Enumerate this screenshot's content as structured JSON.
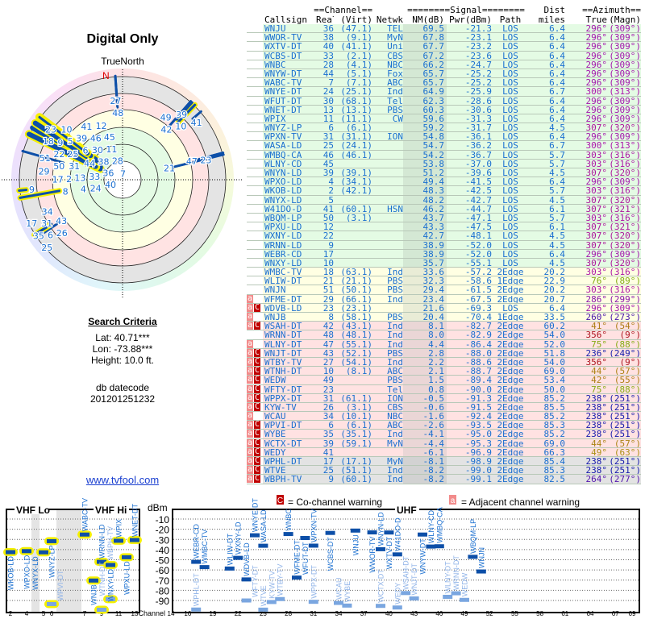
{
  "polar": {
    "title": "Digital Only",
    "north_label": "TrueNorth",
    "n_marker": "N"
  },
  "criteria": {
    "heading": "Search Criteria",
    "lat": "Lat: 40.71***",
    "lon": "Lon: -73.88***",
    "height": "Height: 10.0 ft.",
    "datecode_label": "db datecode",
    "datecode": "201201251232"
  },
  "link": "www.tvfool.com",
  "table_header": {
    "channel_group": "==Channel==",
    "signal_group": "========Signal========",
    "dist_top": "Dist",
    "azimuth_group": "==Azimuth==",
    "callsign": "Callsign",
    "real": "Real",
    "virt": "(Virt)",
    "netwk": "Netwk",
    "nm": "NM(dB)",
    "pwr": "Pwr(dBm)",
    "path": "Path",
    "dist": "miles",
    "true": "True",
    "magn": "(Magn)"
  },
  "stations": [
    {
      "f": "",
      "cs": "WNJU",
      "ch": "36",
      "v": "(47.1)",
      "net": "TEL",
      "nm": "69.5",
      "pwr": "-21.3",
      "path": "LOS",
      "dist": "6.4",
      "az": "296°",
      "mag": "(309°)",
      "zone": "green"
    },
    {
      "f": "",
      "cs": "WWOR-TV",
      "ch": "38",
      "v": "(9.1)",
      "net": "MyN",
      "nm": "67.8",
      "pwr": "-23.1",
      "path": "LOS",
      "dist": "6.4",
      "az": "296°",
      "mag": "(309°)",
      "zone": "green"
    },
    {
      "f": "",
      "cs": "WXTV-DT",
      "ch": "40",
      "v": "(41.1)",
      "net": "Uni",
      "nm": "67.7",
      "pwr": "-23.2",
      "path": "LOS",
      "dist": "6.4",
      "az": "296°",
      "mag": "(309°)",
      "zone": "green"
    },
    {
      "f": "",
      "cs": "WCBS-DT",
      "ch": "33",
      "v": "(2.1)",
      "net": "CBS",
      "nm": "67.2",
      "pwr": "-23.6",
      "path": "LOS",
      "dist": "6.4",
      "az": "296°",
      "mag": "(309°)",
      "zone": "green"
    },
    {
      "f": "",
      "cs": "WNBC",
      "ch": "28",
      "v": "(4.1)",
      "net": "NBC",
      "nm": "66.2",
      "pwr": "-24.7",
      "path": "LOS",
      "dist": "6.4",
      "az": "296°",
      "mag": "(309°)",
      "zone": "green"
    },
    {
      "f": "",
      "cs": "WNYW-DT",
      "ch": "44",
      "v": "(5.1)",
      "net": "Fox",
      "nm": "65.7",
      "pwr": "-25.2",
      "path": "LOS",
      "dist": "6.4",
      "az": "296°",
      "mag": "(309°)",
      "zone": "green"
    },
    {
      "f": "",
      "cs": "WABC-TV",
      "ch": "7",
      "v": "(7.1)",
      "net": "ABC",
      "nm": "65.7",
      "pwr": "-25.2",
      "path": "LOS",
      "dist": "6.4",
      "az": "296°",
      "mag": "(309°)",
      "zone": "green"
    },
    {
      "f": "",
      "cs": "WNYE-DT",
      "ch": "24",
      "v": "(25.1)",
      "net": "Ind",
      "nm": "64.9",
      "pwr": "-25.9",
      "path": "LOS",
      "dist": "6.7",
      "az": "300°",
      "mag": "(313°)",
      "zone": "green"
    },
    {
      "f": "",
      "cs": "WFUT-DT",
      "ch": "30",
      "v": "(68.1)",
      "net": "Tel",
      "nm": "62.3",
      "pwr": "-28.6",
      "path": "LOS",
      "dist": "6.4",
      "az": "296°",
      "mag": "(309°)",
      "zone": "green"
    },
    {
      "f": "",
      "cs": "WNET-DT",
      "ch": "13",
      "v": "(13.1)",
      "net": "PBS",
      "nm": "60.3",
      "pwr": "-30.6",
      "path": "LOS",
      "dist": "6.4",
      "az": "296°",
      "mag": "(309°)",
      "zone": "green"
    },
    {
      "f": "",
      "cs": "WPIX",
      "ch": "11",
      "v": "(11.1)",
      "net": "CW",
      "nm": "59.6",
      "pwr": "-31.3",
      "path": "LOS",
      "dist": "6.4",
      "az": "296°",
      "mag": "(309°)",
      "zone": "green"
    },
    {
      "f": "",
      "cs": "WNYZ-LP",
      "ch": "6",
      "v": "(6.1)",
      "net": "",
      "nm": "59.2",
      "pwr": "-31.7",
      "path": "LOS",
      "dist": "4.5",
      "az": "307°",
      "mag": "(320°)",
      "zone": "green"
    },
    {
      "f": "",
      "cs": "WPXN-TV",
      "ch": "31",
      "v": "(31.1)",
      "net": "ION",
      "nm": "54.8",
      "pwr": "-36.1",
      "path": "LOS",
      "dist": "6.4",
      "az": "296°",
      "mag": "(309°)",
      "zone": "green"
    },
    {
      "f": "",
      "cs": "WASA-LD",
      "ch": "25",
      "v": "(24.1)",
      "net": "",
      "nm": "54.7",
      "pwr": "-36.2",
      "path": "LOS",
      "dist": "6.7",
      "az": "300°",
      "mag": "(313°)",
      "zone": "green"
    },
    {
      "f": "",
      "cs": "WMBQ-CA",
      "ch": "46",
      "v": "(46.1)",
      "net": "",
      "nm": "54.2",
      "pwr": "-36.7",
      "path": "LOS",
      "dist": "5.7",
      "az": "303°",
      "mag": "(316°)",
      "zone": "green"
    },
    {
      "f": "",
      "cs": "WLNY-CD",
      "ch": "45",
      "v": "",
      "net": "",
      "nm": "53.8",
      "pwr": "-37.0",
      "path": "LOS",
      "dist": "5.7",
      "az": "303°",
      "mag": "(316°)",
      "zone": "green"
    },
    {
      "f": "",
      "cs": "WNYN-LD",
      "ch": "39",
      "v": "(39.1)",
      "net": "",
      "nm": "51.2",
      "pwr": "-39.6",
      "path": "LOS",
      "dist": "4.5",
      "az": "307°",
      "mag": "(320°)",
      "zone": "green"
    },
    {
      "f": "",
      "cs": "WPXO-LD",
      "ch": "4",
      "v": "(34.1)",
      "net": "",
      "nm": "49.4",
      "pwr": "-41.5",
      "path": "LOS",
      "dist": "6.4",
      "az": "296°",
      "mag": "(309°)",
      "zone": "green"
    },
    {
      "f": "",
      "cs": "WKOB-LD",
      "ch": "2",
      "v": "(42.1)",
      "net": "",
      "nm": "48.3",
      "pwr": "-42.5",
      "path": "LOS",
      "dist": "5.7",
      "az": "303°",
      "mag": "(316°)",
      "zone": "green"
    },
    {
      "f": "",
      "cs": "WNYX-LD",
      "ch": "5",
      "v": "",
      "net": "",
      "nm": "48.2",
      "pwr": "-42.7",
      "path": "LOS",
      "dist": "4.5",
      "az": "307°",
      "mag": "(320°)",
      "zone": "green"
    },
    {
      "f": "",
      "cs": "W41DO-D",
      "ch": "41",
      "v": "(60.1)",
      "net": "HSN",
      "nm": "46.2",
      "pwr": "-44.7",
      "path": "LOS",
      "dist": "6.1",
      "az": "307°",
      "mag": "(321°)",
      "zone": "green"
    },
    {
      "f": "",
      "cs": "WBQM-LP",
      "ch": "50",
      "v": "(3.1)",
      "net": "",
      "nm": "43.7",
      "pwr": "-47.1",
      "path": "LOS",
      "dist": "5.7",
      "az": "303°",
      "mag": "(316°)",
      "zone": "green"
    },
    {
      "f": "",
      "cs": "WPXU-LD",
      "ch": "12",
      "v": "",
      "net": "",
      "nm": "43.3",
      "pwr": "-47.5",
      "path": "LOS",
      "dist": "6.1",
      "az": "307°",
      "mag": "(321°)",
      "zone": "green"
    },
    {
      "f": "",
      "cs": "WXNY-LD",
      "ch": "22",
      "v": "",
      "net": "",
      "nm": "42.7",
      "pwr": "-48.1",
      "path": "LOS",
      "dist": "4.5",
      "az": "307°",
      "mag": "(320°)",
      "zone": "green"
    },
    {
      "f": "",
      "cs": "WRNN-LD",
      "ch": "9",
      "v": "",
      "net": "",
      "nm": "38.9",
      "pwr": "-52.0",
      "path": "LOS",
      "dist": "4.5",
      "az": "307°",
      "mag": "(320°)",
      "zone": "green"
    },
    {
      "f": "",
      "cs": "WEBR-CD",
      "ch": "17",
      "v": "",
      "net": "",
      "nm": "38.9",
      "pwr": "-52.0",
      "path": "LOS",
      "dist": "6.4",
      "az": "296°",
      "mag": "(309°)",
      "zone": "green"
    },
    {
      "f": "",
      "cs": "WNXY-LD",
      "ch": "10",
      "v": "",
      "net": "",
      "nm": "35.7",
      "pwr": "-55.1",
      "path": "LOS",
      "dist": "4.5",
      "az": "307°",
      "mag": "(320°)",
      "zone": "green"
    },
    {
      "f": "",
      "cs": "WMBC-TV",
      "ch": "18",
      "v": "(63.1)",
      "net": "Ind",
      "nm": "33.6",
      "pwr": "-57.2",
      "path": "2Edge",
      "dist": "20.2",
      "az": "303°",
      "mag": "(316°)",
      "zone": "yellow"
    },
    {
      "f": "",
      "cs": "WLIW-DT",
      "ch": "21",
      "v": "(21.1)",
      "net": "PBS",
      "nm": "32.3",
      "pwr": "-58.6",
      "path": "1Edge",
      "dist": "22.9",
      "az": "76°",
      "mag": "(89°)",
      "zone": "yellow"
    },
    {
      "f": "",
      "cs": "WNJN",
      "ch": "51",
      "v": "(50.1)",
      "net": "PBS",
      "nm": "29.4",
      "pwr": "-61.5",
      "path": "2Edge",
      "dist": "20.2",
      "az": "303°",
      "mag": "(316°)",
      "zone": "yellow"
    },
    {
      "f": "a",
      "cs": "WFME-DT",
      "ch": "29",
      "v": "(66.1)",
      "net": "Ind",
      "nm": "23.4",
      "pwr": "-67.5",
      "path": "2Edge",
      "dist": "20.7",
      "az": "286°",
      "mag": "(299°)",
      "zone": "yellow"
    },
    {
      "f": "aC",
      "cs": "WDVB-LD",
      "ch": "23",
      "v": "(23.1)",
      "net": "",
      "nm": "21.6",
      "pwr": "-69.3",
      "path": "LOS",
      "dist": "6.4",
      "az": "296°",
      "mag": "(309°)",
      "zone": "yellow"
    },
    {
      "f": "a",
      "cs": "WNJB",
      "ch": "8",
      "v": "(58.1)",
      "net": "PBS",
      "nm": "20.4",
      "pwr": "-70.4",
      "path": "1Edge",
      "dist": "33.5",
      "az": "260°",
      "mag": "(273°)",
      "zone": "yellow"
    },
    {
      "f": "aC",
      "cs": "WSAH-DT",
      "ch": "42",
      "v": "(43.1)",
      "net": "Ind",
      "nm": "8.1",
      "pwr": "-82.7",
      "path": "2Edge",
      "dist": "60.2",
      "az": "41°",
      "mag": "(54°)",
      "zone": "pink"
    },
    {
      "f": "",
      "cs": "WRNN-DT",
      "ch": "48",
      "v": "(48.1)",
      "net": "Ind",
      "nm": "8.0",
      "pwr": "-82.9",
      "path": "2Edge",
      "dist": "54.0",
      "az": "356°",
      "mag": "(9°)",
      "zone": "pink"
    },
    {
      "f": "a",
      "cs": "WLNY-DT",
      "ch": "47",
      "v": "(55.1)",
      "net": "Ind",
      "nm": "4.4",
      "pwr": "-86.4",
      "path": "2Edge",
      "dist": "52.0",
      "az": "75°",
      "mag": "(88°)",
      "zone": "pink"
    },
    {
      "f": "aC",
      "cs": "WNJT-DT",
      "ch": "43",
      "v": "(52.1)",
      "net": "PBS",
      "nm": "2.8",
      "pwr": "-88.0",
      "path": "2Edge",
      "dist": "51.8",
      "az": "236°",
      "mag": "(249°)",
      "zone": "pink"
    },
    {
      "f": "aC",
      "cs": "WTBY-TV",
      "ch": "27",
      "v": "(54.1)",
      "net": "Ind",
      "nm": "2.2",
      "pwr": "-88.6",
      "path": "2Edge",
      "dist": "54.0",
      "az": "356°",
      "mag": "(9°)",
      "zone": "pink"
    },
    {
      "f": "aC",
      "cs": "WTNH-DT",
      "ch": "10",
      "v": "(8.1)",
      "net": "ABC",
      "nm": "2.1",
      "pwr": "-88.7",
      "path": "2Edge",
      "dist": "69.0",
      "az": "44°",
      "mag": "(57°)",
      "zone": "pink"
    },
    {
      "f": "aC",
      "cs": "WEDW",
      "ch": "49",
      "v": "",
      "net": "PBS",
      "nm": "1.5",
      "pwr": "-89.4",
      "path": "2Edge",
      "dist": "53.4",
      "az": "42°",
      "mag": "(55°)",
      "zone": "pink"
    },
    {
      "f": "aC",
      "cs": "WFTY-DT",
      "ch": "23",
      "v": "",
      "net": "Tel",
      "nm": "0.8",
      "pwr": "-90.0",
      "path": "2Edge",
      "dist": "50.0",
      "az": "75°",
      "mag": "(88°)",
      "zone": "pink"
    },
    {
      "f": "aC",
      "cs": "WPPX-DT",
      "ch": "31",
      "v": "(61.1)",
      "net": "ION",
      "nm": "-0.5",
      "pwr": "-91.3",
      "path": "2Edge",
      "dist": "85.2",
      "az": "238°",
      "mag": "(251°)",
      "zone": "pink"
    },
    {
      "f": "aC",
      "cs": "KYW-TV",
      "ch": "26",
      "v": "(3.1)",
      "net": "CBS",
      "nm": "-0.6",
      "pwr": "-91.5",
      "path": "2Edge",
      "dist": "85.5",
      "az": "238°",
      "mag": "(251°)",
      "zone": "pink"
    },
    {
      "f": "a",
      "cs": "WCAU",
      "ch": "34",
      "v": "(10.1)",
      "net": "NBC",
      "nm": "-1.6",
      "pwr": "-92.4",
      "path": "2Edge",
      "dist": "85.2",
      "az": "238°",
      "mag": "(251°)",
      "zone": "pink"
    },
    {
      "f": "aC",
      "cs": "WPVI-DT",
      "ch": "6",
      "v": "(6.1)",
      "net": "ABC",
      "nm": "-2.6",
      "pwr": "-93.5",
      "path": "2Edge",
      "dist": "85.3",
      "az": "238°",
      "mag": "(251°)",
      "zone": "pink"
    },
    {
      "f": "aC",
      "cs": "WYBE",
      "ch": "35",
      "v": "(35.1)",
      "net": "Ind",
      "nm": "-4.1",
      "pwr": "-95.0",
      "path": "2Edge",
      "dist": "85.2",
      "az": "238°",
      "mag": "(251°)",
      "zone": "pink"
    },
    {
      "f": "aC",
      "cs": "WCTX-DT",
      "ch": "39",
      "v": "(59.1)",
      "net": "MyN",
      "nm": "-4.4",
      "pwr": "-95.3",
      "path": "2Edge",
      "dist": "69.0",
      "az": "44°",
      "mag": "(57°)",
      "zone": "pink"
    },
    {
      "f": "aC",
      "cs": "WEDY",
      "ch": "41",
      "v": "",
      "net": "",
      "nm": "-6.1",
      "pwr": "-96.9",
      "path": "2Edge",
      "dist": "66.3",
      "az": "49°",
      "mag": "(63°)",
      "zone": "pink"
    },
    {
      "f": "aC",
      "cs": "WPHL-DT",
      "ch": "17",
      "v": "(17.1)",
      "net": "MyN",
      "nm": "-8.1",
      "pwr": "-98.9",
      "path": "2Edge",
      "dist": "85.4",
      "az": "238°",
      "mag": "(251°)",
      "zone": "gray"
    },
    {
      "f": "aC",
      "cs": "WTVE",
      "ch": "25",
      "v": "(51.1)",
      "net": "Ind",
      "nm": "-8.2",
      "pwr": "-99.0",
      "path": "2Edge",
      "dist": "85.3",
      "az": "238°",
      "mag": "(251°)",
      "zone": "gray"
    },
    {
      "f": "aC",
      "cs": "WBPH-TV",
      "ch": "9",
      "v": "(60.1)",
      "net": "Ind",
      "nm": "-8.2",
      "pwr": "-99.1",
      "path": "2Edge",
      "dist": "82.5",
      "az": "264°",
      "mag": "(277°)",
      "zone": "gray"
    }
  ],
  "legend": {
    "co_flag": "C",
    "co_text": "= Co-channel warning",
    "adj_flag": "a",
    "adj_text": "= Adjacent channel warning"
  },
  "spectrum": {
    "vhf_lo": "VHF Lo",
    "vhf_hi": "VHF Hi",
    "uhf": "UHF",
    "dbm_label": "dBm",
    "channel_label": "Channel",
    "dbm_ticks": [
      "-10",
      "-20",
      "-30",
      "-40",
      "-50",
      "-60",
      "-70",
      "-80",
      "-90"
    ],
    "vhf_channels": [
      "2",
      "4",
      "5",
      "6",
      "7",
      "9",
      "11",
      "13"
    ],
    "uhf_channels": [
      "14",
      "16",
      "19",
      "22",
      "25",
      "28",
      "31",
      "34",
      "37",
      "40",
      "43",
      "46",
      "49",
      "52",
      "55",
      "58",
      "61",
      "64",
      "67",
      "69"
    ]
  },
  "colors": {
    "text": "#1a6fd0",
    "bar": "#0d4fa8",
    "bar_weak": "#7aa6e0",
    "vhf_highlight": "#f5f000",
    "co_flag": "#c00000",
    "adj_flag": "#f28b8b"
  }
}
